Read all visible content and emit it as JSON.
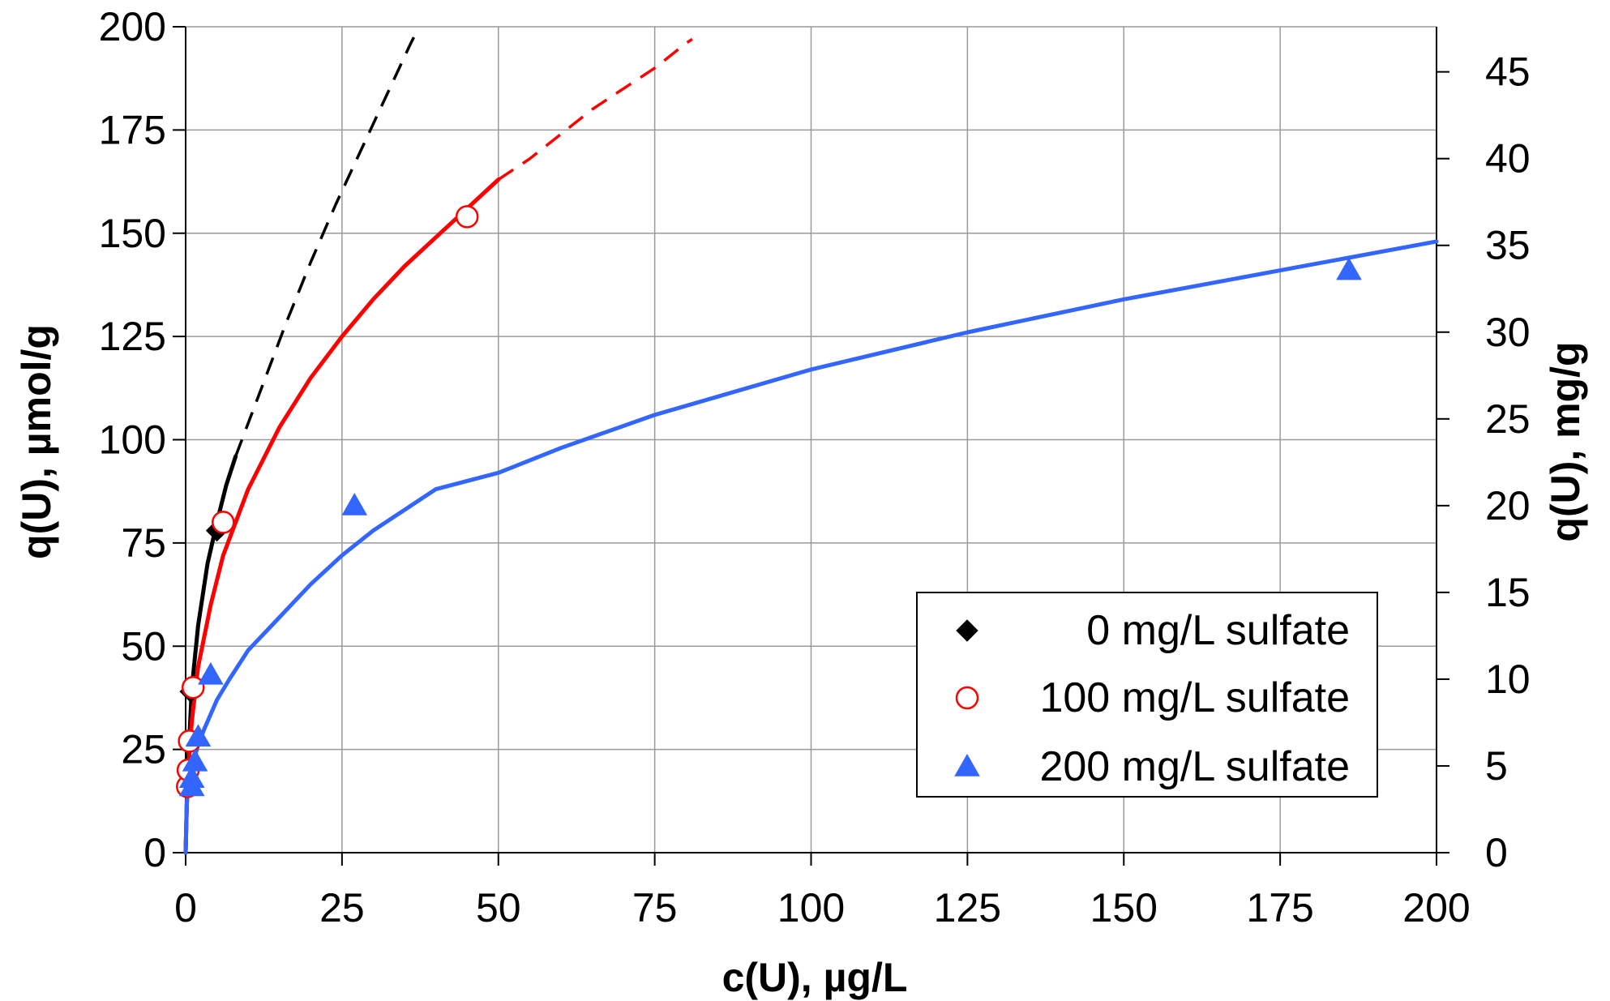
{
  "chart_data": {
    "type": "scatter",
    "title": "",
    "xlabel": "c(U), µg/L",
    "ylabel": "q(U), µmol/g",
    "y2label": "q(U), mg/g",
    "xlim": [
      0,
      200
    ],
    "ylim": [
      0,
      200
    ],
    "y2lim": [
      0,
      47.6
    ],
    "x_ticks": [
      0,
      25,
      50,
      75,
      100,
      125,
      150,
      175,
      200
    ],
    "y_ticks": [
      0,
      25,
      50,
      75,
      100,
      125,
      150,
      175,
      200
    ],
    "y2_ticks": [
      0,
      5,
      10,
      15,
      20,
      25,
      30,
      35,
      40,
      45
    ],
    "grid": true,
    "legend_position": "lower-right",
    "series": [
      {
        "name": "0 mg/L sulfate",
        "marker": "diamond",
        "color": "#000000",
        "points": [
          [
            0.2,
            16
          ],
          [
            0.4,
            20
          ],
          [
            0.8,
            39
          ],
          [
            5,
            78
          ]
        ],
        "fit_solid": [
          [
            0,
            0
          ],
          [
            0.2,
            13
          ],
          [
            0.5,
            25
          ],
          [
            1,
            40
          ],
          [
            2,
            55
          ],
          [
            3.5,
            70
          ],
          [
            5,
            80
          ],
          [
            6.5,
            89
          ],
          [
            8,
            96
          ]
        ],
        "fit_dashed": [
          [
            8,
            96
          ],
          [
            12,
            112
          ],
          [
            16,
            128
          ],
          [
            20,
            143
          ],
          [
            24,
            157
          ],
          [
            28,
            170
          ],
          [
            32,
            183
          ],
          [
            36,
            196
          ],
          [
            37,
            199
          ]
        ]
      },
      {
        "name": "100 mg/L sulfate",
        "marker": "circle",
        "color": "#ff0000",
        "points": [
          [
            0.3,
            16
          ],
          [
            0.4,
            20
          ],
          [
            0.6,
            27
          ],
          [
            1.2,
            40
          ],
          [
            6,
            80
          ],
          [
            45,
            154
          ]
        ],
        "fit_solid": [
          [
            0,
            0
          ],
          [
            0.2,
            12
          ],
          [
            0.5,
            22
          ],
          [
            1,
            32
          ],
          [
            2,
            45
          ],
          [
            4,
            60
          ],
          [
            6,
            72
          ],
          [
            10,
            88
          ],
          [
            15,
            103
          ],
          [
            20,
            115
          ],
          [
            25,
            125
          ],
          [
            30,
            134
          ],
          [
            35,
            142
          ],
          [
            40,
            149
          ],
          [
            45,
            156
          ],
          [
            50,
            163
          ]
        ],
        "fit_dashed": [
          [
            50,
            163
          ],
          [
            55,
            168
          ],
          [
            60,
            174
          ],
          [
            65,
            180
          ],
          [
            70,
            185
          ],
          [
            75,
            190
          ],
          [
            80,
            196
          ],
          [
            81,
            197
          ]
        ]
      },
      {
        "name": "200 mg/L sulfate",
        "marker": "triangle",
        "color": "#3366ff",
        "points": [
          [
            1,
            16
          ],
          [
            1,
            18
          ],
          [
            1.5,
            22
          ],
          [
            2,
            28
          ],
          [
            4,
            43
          ],
          [
            27,
            84
          ],
          [
            186,
            141
          ]
        ],
        "fit_solid": [
          [
            0,
            0
          ],
          [
            0.2,
            12
          ],
          [
            0.5,
            17
          ],
          [
            1,
            21
          ],
          [
            2,
            26
          ],
          [
            3,
            30
          ],
          [
            5,
            37
          ],
          [
            7,
            42
          ],
          [
            10,
            49
          ],
          [
            15,
            57
          ],
          [
            20,
            65
          ],
          [
            25,
            72
          ],
          [
            30,
            78
          ],
          [
            40,
            88
          ],
          [
            50,
            92
          ],
          [
            60,
            98
          ],
          [
            75,
            106
          ],
          [
            100,
            117
          ],
          [
            125,
            126
          ],
          [
            150,
            134
          ],
          [
            175,
            141
          ],
          [
            200,
            148
          ]
        ],
        "fit_dashed": []
      }
    ]
  }
}
